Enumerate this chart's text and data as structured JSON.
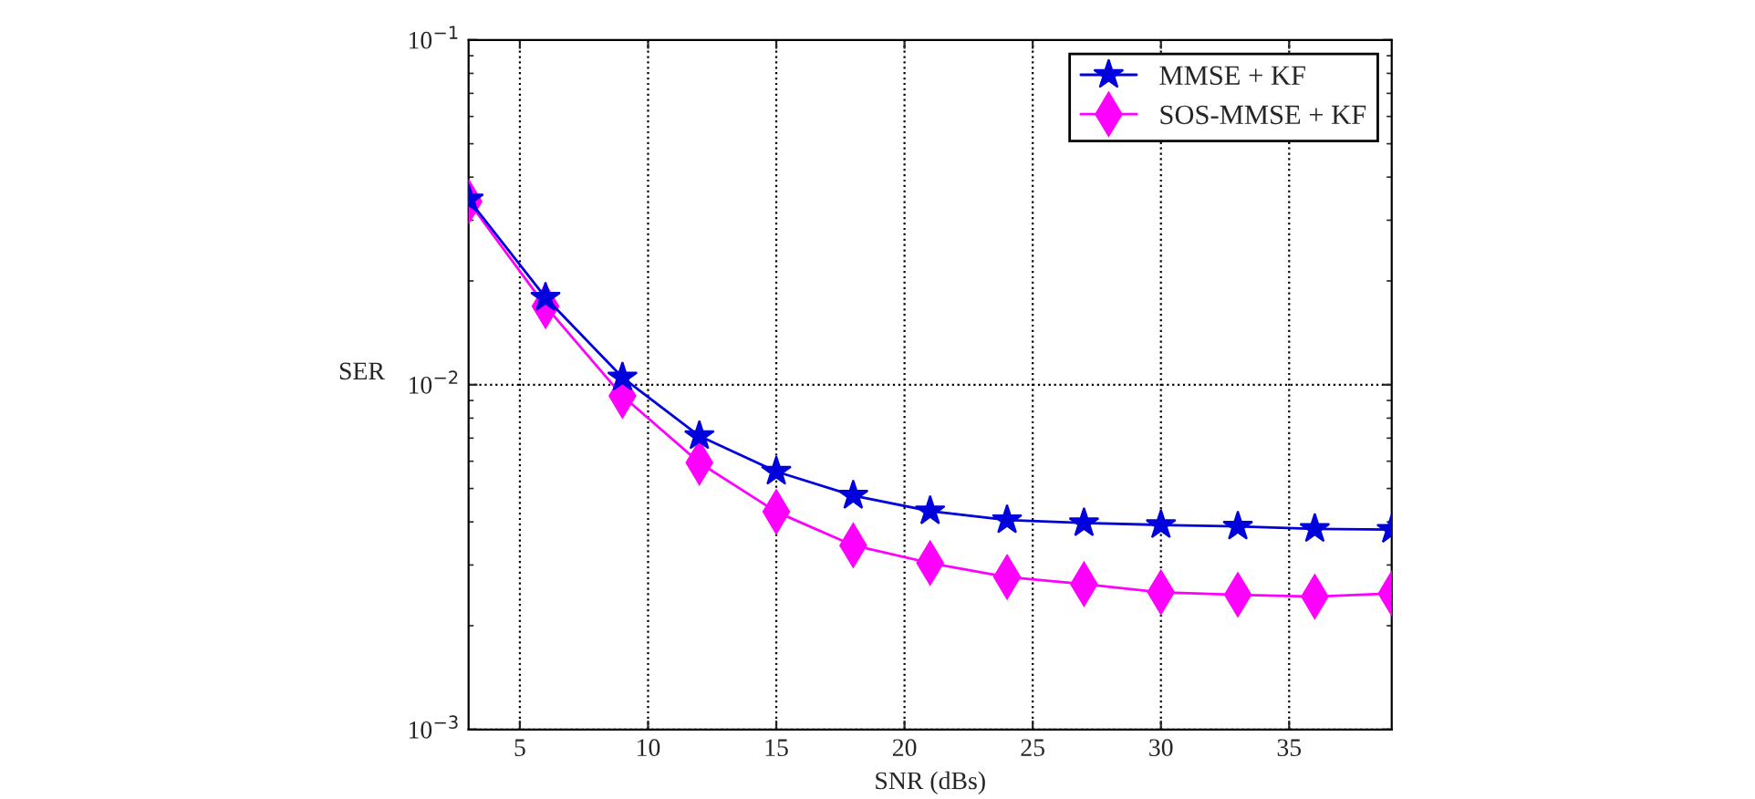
{
  "chart_data": {
    "type": "line",
    "xlabel": "SNR (dBs)",
    "ylabel": "SER",
    "log": "y",
    "x": [
      3,
      6,
      9,
      12,
      15,
      18,
      21,
      24,
      27,
      30,
      33,
      36,
      39
    ],
    "xlim": [
      3,
      39
    ],
    "xticks": [
      5,
      10,
      15,
      20,
      25,
      30,
      35
    ],
    "ylim": [
      0.001,
      0.1
    ],
    "yticks": [
      {
        "value": 0.001,
        "label": "10$^{−3}$"
      },
      {
        "value": 0.01,
        "label": "10$^{−2}$"
      },
      {
        "value": 0.1,
        "label": "10$^{−1}$"
      }
    ],
    "grid": true,
    "legend": "top right",
    "line_style": "solid",
    "series": [
      {
        "name": "MMSE + KF",
        "color": "#0000dd",
        "marker": "star",
        "values": [
          0.0345,
          0.0179,
          0.0105,
          0.0071,
          0.0056,
          0.00477,
          0.0043,
          0.00405,
          0.00397,
          0.00392,
          0.00388,
          0.00382,
          0.0038
        ]
      },
      {
        "name": "SOS-MMSE + KF",
        "color": "#ff00ff",
        "marker": "diamond",
        "values": [
          0.034,
          0.0169,
          0.00928,
          0.00594,
          0.00428,
          0.00342,
          0.00304,
          0.00277,
          0.00264,
          0.0025,
          0.00246,
          0.00243,
          0.00248
        ]
      }
    ]
  }
}
